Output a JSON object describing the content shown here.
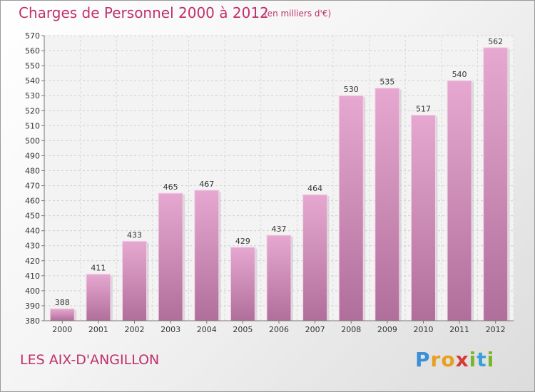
{
  "title": "Charges de Personnel 2000 à 2012",
  "subtitle": "(en milliers d'€)",
  "town": "LES AIX-D'ANGILLON",
  "logo": [
    "P",
    "r",
    "o",
    "x",
    "i",
    "t",
    "i"
  ],
  "colors": {
    "accent": "#c0306a",
    "bar_top": "#e6a8d0",
    "bar_bottom": "#b06f9b"
  },
  "chart_data": {
    "type": "bar",
    "categories": [
      "2000",
      "2001",
      "2002",
      "2003",
      "2004",
      "2005",
      "2006",
      "2007",
      "2008",
      "2009",
      "2010",
      "2011",
      "2012"
    ],
    "values": [
      388,
      411,
      433,
      465,
      467,
      429,
      437,
      464,
      530,
      535,
      517,
      540,
      562
    ],
    "ylim": [
      380,
      570
    ],
    "ytick_step": 10,
    "grid": true
  }
}
